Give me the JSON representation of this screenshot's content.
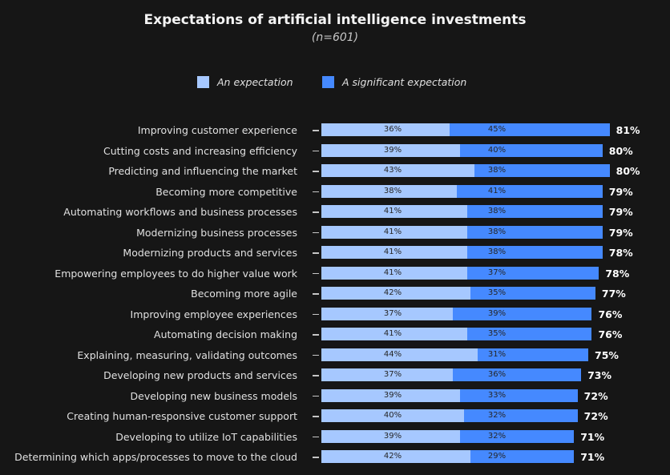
{
  "chart_data": {
    "type": "bar",
    "stacked": true,
    "orientation": "horizontal",
    "title": "Expectations of artificial intelligence investments",
    "subtitle": "(n=601)",
    "legend_position": "top",
    "colors": {
      "An expectation": "#a6c8ff",
      "A significant expectation": "#4589ff",
      "background": "#161616"
    },
    "categories": [
      "Improving customer experience",
      "Cutting costs and increasing efficiency",
      "Predicting and influencing the market",
      "Becoming more competitive",
      "Automating workflows and business processes",
      "Modernizing business processes",
      "Modernizing products and services",
      "Empowering employees to do higher value work",
      "Becoming more agile",
      "Improving employee experiences",
      "Automating decision making",
      "Explaining, measuring, validating outcomes",
      "Developing new products and services",
      "Developing new business models",
      "Creating human-responsive customer support",
      "Developing to utilize IoT capabilities",
      "Determining which apps/processes to move to the cloud"
    ],
    "series": [
      {
        "name": "An expectation",
        "values": [
          36,
          39,
          43,
          38,
          41,
          41,
          41,
          41,
          42,
          37,
          41,
          44,
          37,
          39,
          40,
          39,
          42
        ]
      },
      {
        "name": "A significant expectation",
        "values": [
          45,
          40,
          38,
          41,
          38,
          38,
          38,
          37,
          35,
          39,
          35,
          31,
          36,
          33,
          32,
          32,
          29
        ]
      }
    ],
    "totals": [
      81,
      80,
      80,
      79,
      79,
      79,
      78,
      78,
      77,
      76,
      76,
      75,
      73,
      72,
      72,
      71,
      71
    ],
    "value_suffix": "%",
    "grid": false
  }
}
